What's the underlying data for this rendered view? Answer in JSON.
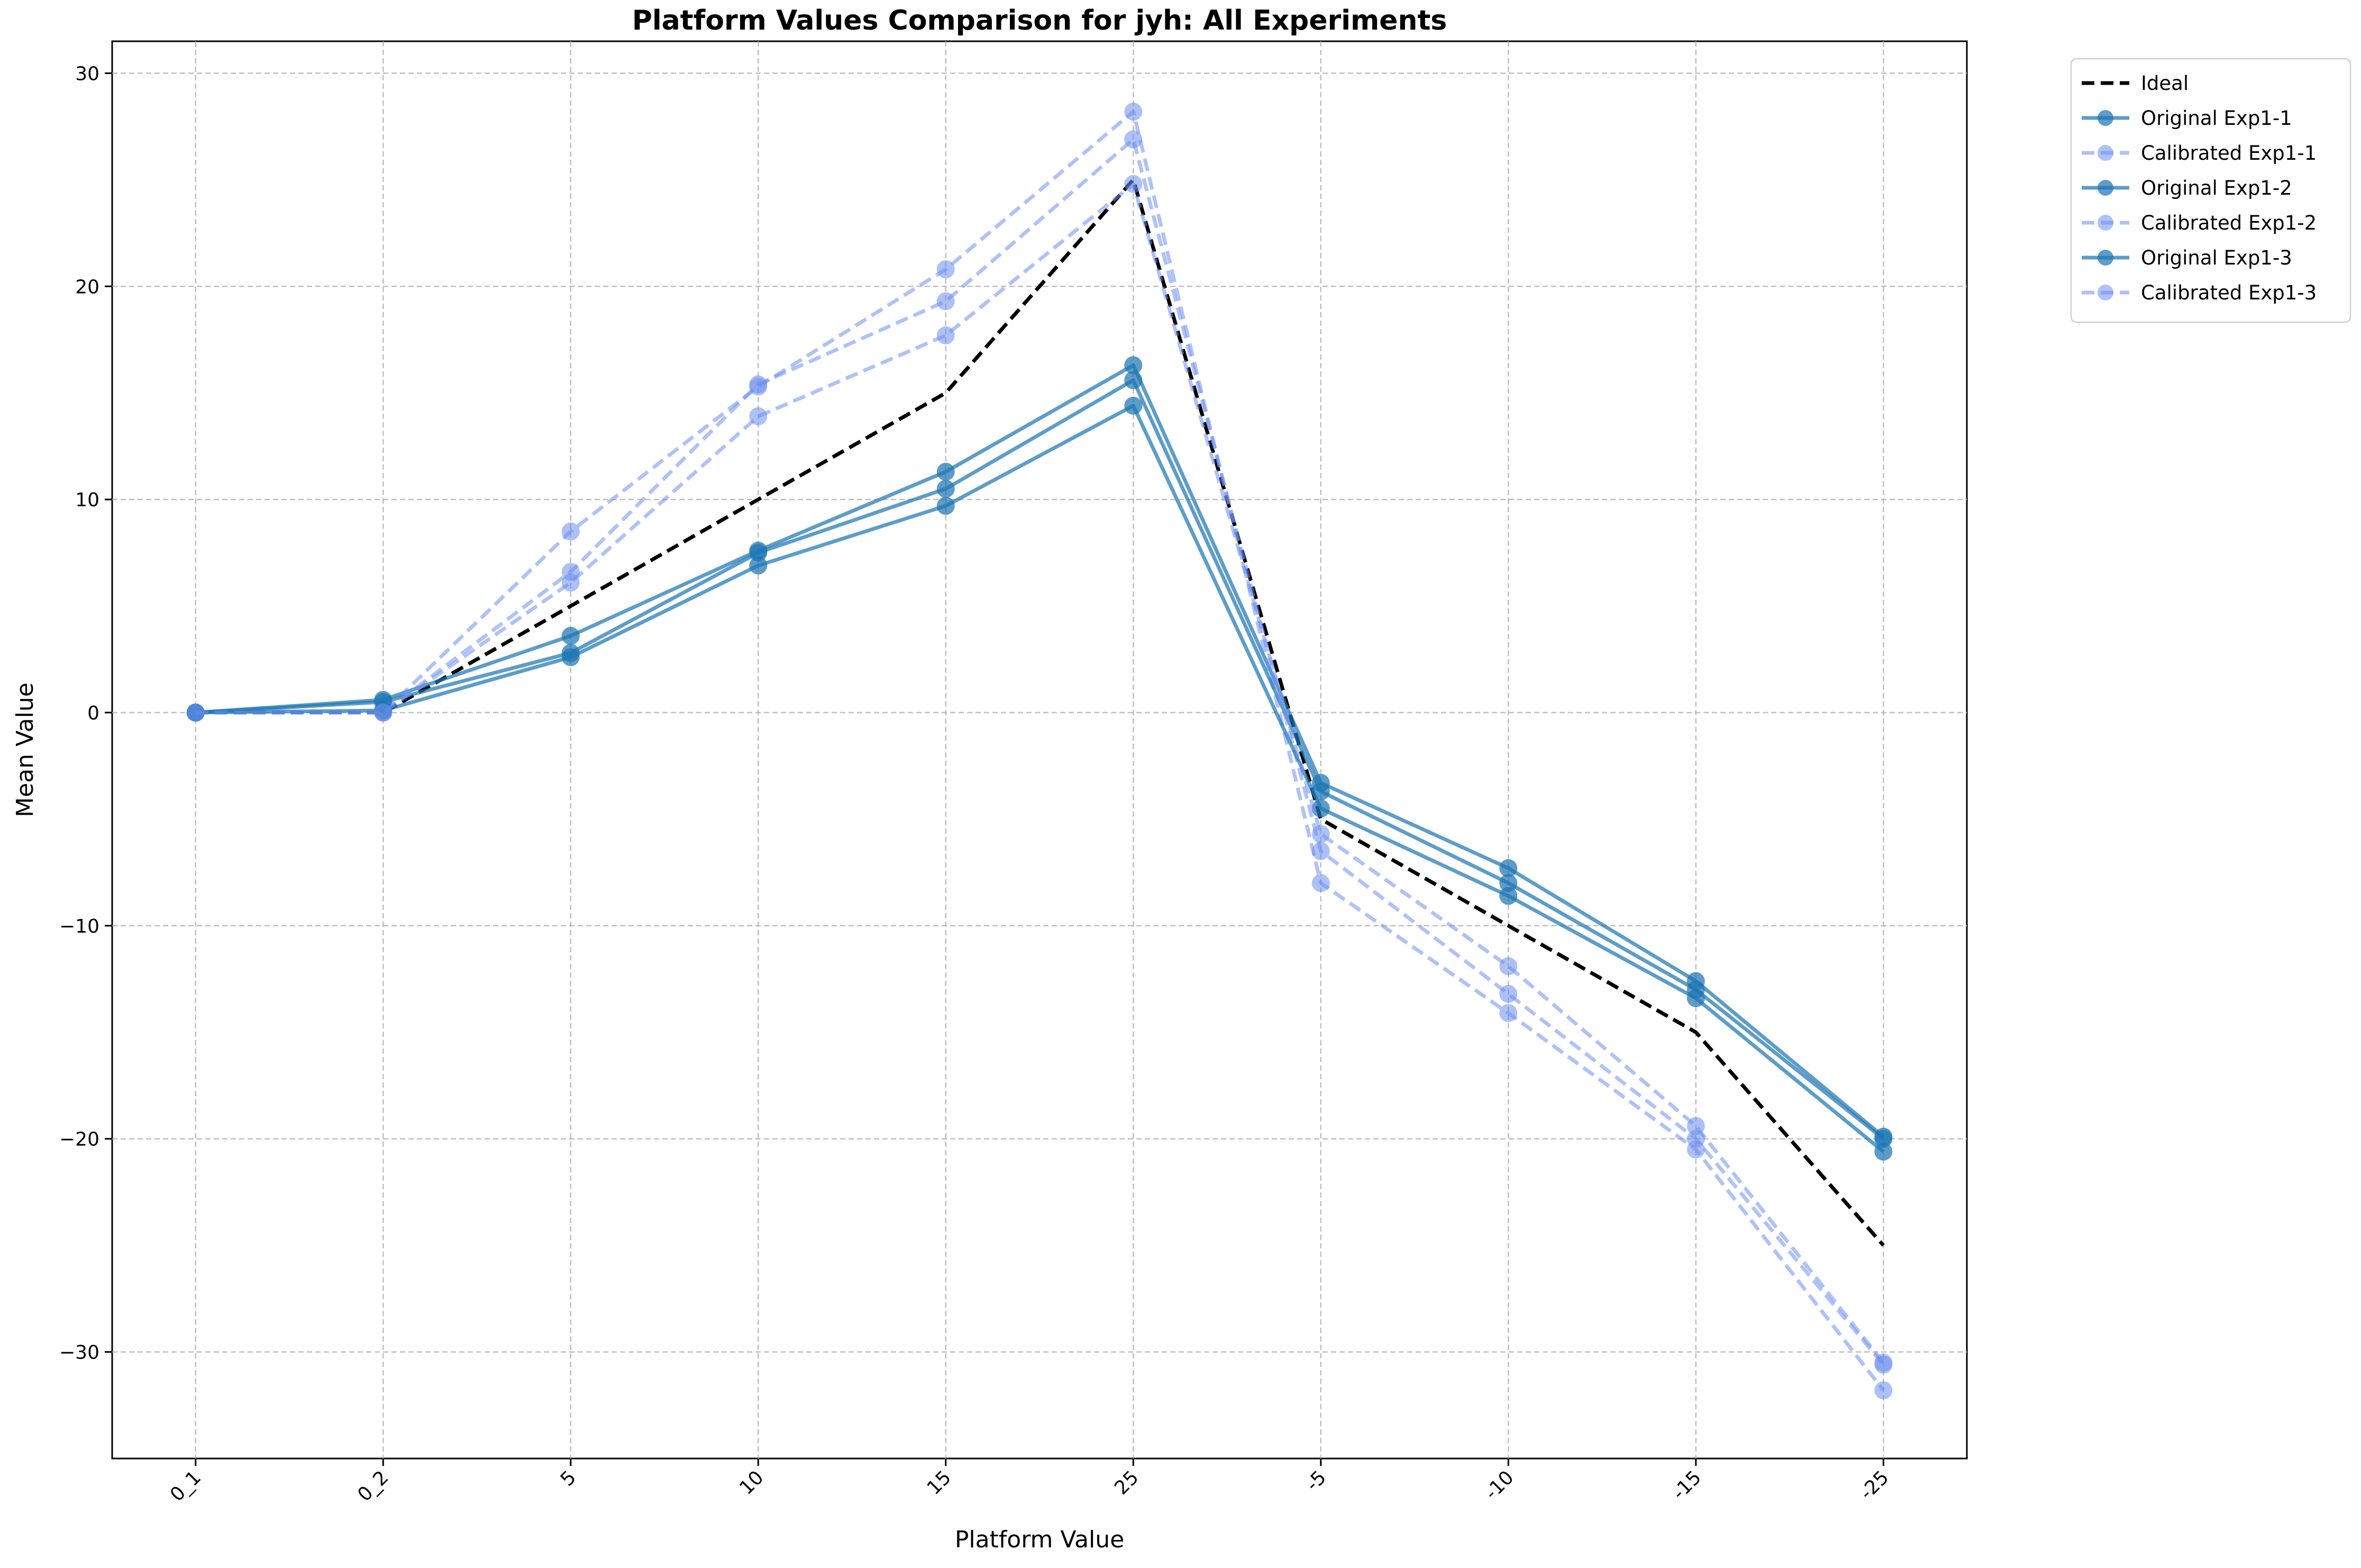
{
  "chart_data": {
    "type": "line",
    "title": "Platform Values Comparison for jyh: All Experiments",
    "xlabel": "Platform Value",
    "ylabel": "Mean Value",
    "categories": [
      "0_1",
      "0_2",
      "5",
      "10",
      "15",
      "25",
      "-5",
      "-10",
      "-15",
      "-25"
    ],
    "ylim": [
      -35,
      31.5
    ],
    "yticks": [
      30,
      20,
      10,
      0,
      -10,
      -20,
      -30
    ],
    "ytick_labels": [
      "30",
      "20",
      "10",
      "0",
      "−10",
      "−20",
      "−30"
    ],
    "grid": true,
    "legend_position": "outside top-right",
    "series": [
      {
        "name": "Ideal",
        "style": "dashed",
        "color": "#000000",
        "marker": false,
        "values": [
          0,
          0,
          5,
          10,
          15,
          25,
          -5,
          -10,
          -15,
          -25
        ]
      },
      {
        "name": "Original Exp1-1",
        "style": "solid",
        "color": "#1f77b4",
        "marker": true,
        "values": [
          0,
          0.6,
          3.6,
          7.6,
          11.3,
          16.3,
          -3.3,
          -7.3,
          -12.6,
          -19.9
        ]
      },
      {
        "name": "Calibrated Exp1-1",
        "style": "dashed",
        "color": "#6d8ff0",
        "marker": true,
        "values": [
          0,
          0,
          8.5,
          15.3,
          20.8,
          28.2,
          -8.0,
          -14.1,
          -20.5,
          -31.8
        ]
      },
      {
        "name": "Original Exp1-2",
        "style": "solid",
        "color": "#1f77b4",
        "marker": true,
        "values": [
          0,
          0.5,
          2.8,
          7.5,
          10.5,
          15.6,
          -3.7,
          -8.0,
          -13.0,
          -20.0
        ]
      },
      {
        "name": "Calibrated Exp1-2",
        "style": "dashed",
        "color": "#6d8ff0",
        "marker": true,
        "values": [
          0,
          0,
          6.6,
          15.4,
          19.3,
          26.9,
          -6.5,
          -13.2,
          -20.0,
          -30.6
        ]
      },
      {
        "name": "Original Exp1-3",
        "style": "solid",
        "color": "#1f77b4",
        "marker": true,
        "values": [
          0,
          0.1,
          2.6,
          6.9,
          9.7,
          14.4,
          -4.5,
          -8.6,
          -13.4,
          -20.6
        ]
      },
      {
        "name": "Calibrated Exp1-3",
        "style": "dashed",
        "color": "#6d8ff0",
        "marker": true,
        "values": [
          0,
          0,
          6.1,
          13.9,
          17.7,
          24.8,
          -5.7,
          -11.9,
          -19.4,
          -30.5
        ]
      }
    ]
  }
}
